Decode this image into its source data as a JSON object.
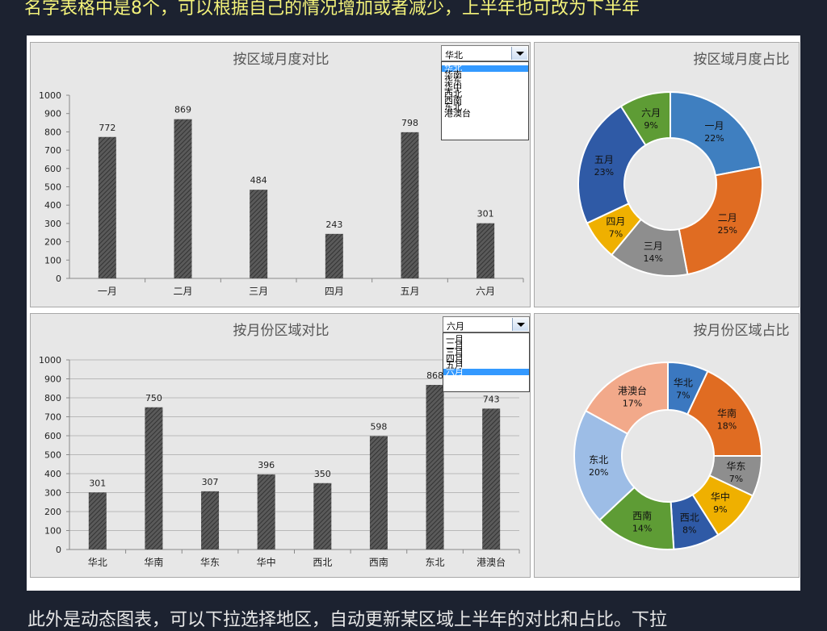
{
  "captions": {
    "top": "名字表格中是8个，可以根据自己的情况增加或者减少，上半年也可改为下半年",
    "bottom": "此外是动态图表，可以下拉选择地区，自动更新某区域上半年的对比和占比。下拉"
  },
  "colors": {
    "bar_fill": "#555555",
    "panel_bg": "#e7e7e7",
    "highlight": "#3399ff"
  },
  "dropdown_region": {
    "value": "华北",
    "options": [
      "华北",
      "华南",
      "华东",
      "华中",
      "西北",
      "西南",
      "东北",
      "港澳台"
    ],
    "selected_index": 0
  },
  "dropdown_month": {
    "value": "六月",
    "options": [
      "一月",
      "二月",
      "三月",
      "四月",
      "五月",
      "六月"
    ],
    "selected_index": 5
  },
  "chart_data": [
    {
      "type": "bar",
      "title": "按区域月度对比",
      "categories": [
        "一月",
        "二月",
        "三月",
        "四月",
        "五月",
        "六月"
      ],
      "values": [
        772,
        869,
        484,
        243,
        798,
        301
      ],
      "ylim": [
        0,
        1000
      ],
      "yticks": [
        "0",
        "100",
        "200",
        "300",
        "400",
        "500",
        "600",
        "700",
        "800",
        "900",
        "1000"
      ],
      "grid": false
    },
    {
      "type": "pie",
      "title": "按区域月度占比",
      "slices": [
        {
          "label": "一月",
          "pct": "22%",
          "value": 22,
          "color": "#3f7fc0"
        },
        {
          "label": "二月",
          "pct": "25%",
          "value": 25,
          "color": "#e06c22"
        },
        {
          "label": "三月",
          "pct": "14%",
          "value": 14,
          "color": "#8e8e8e"
        },
        {
          "label": "四月",
          "pct": "7%",
          "value": 7,
          "color": "#efb000"
        },
        {
          "label": "五月",
          "pct": "23%",
          "value": 23,
          "color": "#2f5aa6"
        },
        {
          "label": "六月",
          "pct": "9%",
          "value": 9,
          "color": "#5e9c35"
        }
      ]
    },
    {
      "type": "bar",
      "title": "按月份区域对比",
      "categories": [
        "华北",
        "华南",
        "华东",
        "华中",
        "西北",
        "西南",
        "东北",
        "港澳台"
      ],
      "values": [
        301,
        750,
        307,
        396,
        350,
        598,
        868,
        743
      ],
      "ylim": [
        0,
        1000
      ],
      "yticks": [
        "0",
        "100",
        "200",
        "300",
        "400",
        "500",
        "600",
        "700",
        "800",
        "900",
        "1000"
      ],
      "grid": true
    },
    {
      "type": "pie",
      "title": "按月份区域占比",
      "slices": [
        {
          "label": "华北",
          "pct": "7%",
          "value": 7,
          "color": "#3b78c0"
        },
        {
          "label": "华南",
          "pct": "18%",
          "value": 18,
          "color": "#e06c22"
        },
        {
          "label": "华东",
          "pct": "7%",
          "value": 7,
          "color": "#8e8e8e"
        },
        {
          "label": "华中",
          "pct": "9%",
          "value": 9,
          "color": "#efb000"
        },
        {
          "label": "西北",
          "pct": "8%",
          "value": 8,
          "color": "#2f5aa6"
        },
        {
          "label": "西南",
          "pct": "14%",
          "value": 14,
          "color": "#5e9c35"
        },
        {
          "label": "东北",
          "pct": "20%",
          "value": 20,
          "color": "#9dbde6"
        },
        {
          "label": "港澳台",
          "pct": "17%",
          "value": 17,
          "color": "#f2a98a"
        }
      ]
    }
  ]
}
